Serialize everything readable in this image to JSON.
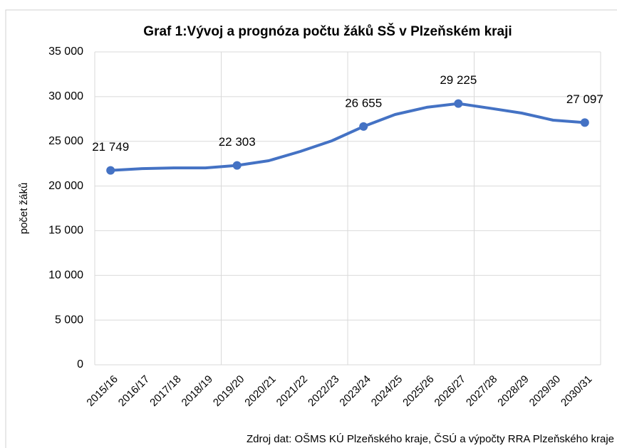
{
  "chart_data": {
    "type": "line",
    "title": "Graf 1:Vývoj a prognóza počtu žáků SŠ v Plzeňském kraji",
    "y_label": "počet žáků",
    "source": "Zdroj dat: OŠMS KÚ Plzeňského kraje, ČSÚ a výpočty RRA Plzeňského kraje",
    "categories": [
      "2015/16",
      "2016/17",
      "2017/18",
      "2018/19",
      "2019/20",
      "2020/21",
      "2021/22",
      "2022/23",
      "2023/24",
      "2024/25",
      "2025/26",
      "2026/27",
      "2027/28",
      "2028/29",
      "2029/30",
      "2030/31"
    ],
    "series": [
      {
        "name": "počet žáků",
        "color": "#4472c4",
        "values": [
          21749,
          21950,
          22030,
          22030,
          22303,
          22830,
          23860,
          25060,
          26655,
          28000,
          28800,
          29225,
          28700,
          28160,
          27360,
          27097
        ],
        "value_labels": [
          "21 749",
          null,
          null,
          null,
          "22 303",
          null,
          null,
          null,
          "26 655",
          null,
          null,
          "29 225",
          null,
          null,
          null,
          "27 097"
        ]
      }
    ],
    "ylim": [
      0,
      35000
    ],
    "yticks": [
      0,
      {
        "value": 5000,
        "label": "5 000"
      },
      {
        "value": 10000,
        "label": "10 000"
      },
      {
        "value": 15000,
        "label": "15 000"
      },
      {
        "value": 20000,
        "label": "20 000"
      },
      {
        "value": 25000,
        "label": "25 000"
      },
      {
        "value": 30000,
        "label": "30 000"
      },
      {
        "value": 35000,
        "label": "35 000"
      }
    ],
    "grid": true
  }
}
